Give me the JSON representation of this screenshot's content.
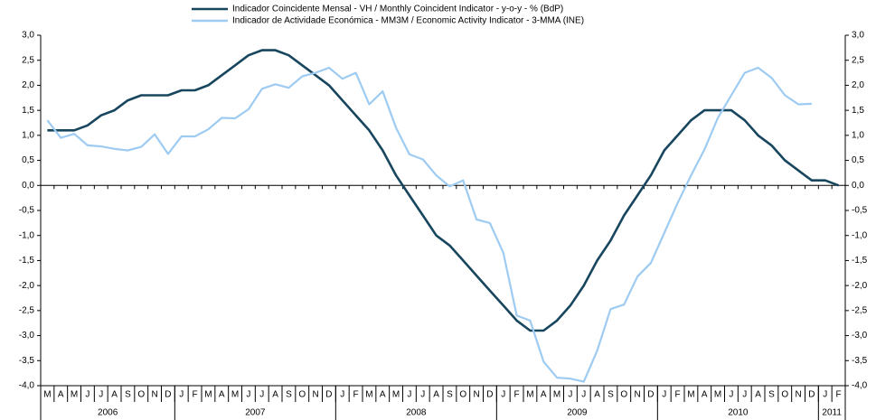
{
  "chart_data": {
    "type": "line",
    "legend": "top",
    "categories": [
      "M",
      "A",
      "M",
      "J",
      "J",
      "A",
      "S",
      "O",
      "N",
      "D",
      "J",
      "F",
      "M",
      "A",
      "M",
      "J",
      "J",
      "A",
      "S",
      "O",
      "N",
      "D",
      "J",
      "F",
      "M",
      "A",
      "M",
      "J",
      "J",
      "A",
      "S",
      "O",
      "N",
      "D",
      "J",
      "F",
      "M",
      "A",
      "M",
      "J",
      "J",
      "A",
      "S",
      "O",
      "N",
      "D",
      "J",
      "F",
      "M",
      "A",
      "M",
      "J",
      "J",
      "A",
      "S",
      "O",
      "N",
      "D",
      "J",
      "F"
    ],
    "year_groups": [
      {
        "label": "2006",
        "count": 10
      },
      {
        "label": "2007",
        "count": 12
      },
      {
        "label": "2008",
        "count": 12
      },
      {
        "label": "2009",
        "count": 12
      },
      {
        "label": "2010",
        "count": 12
      },
      {
        "label": "2011",
        "count": 2
      }
    ],
    "series": [
      {
        "name": "Indicador Coincidente Mensal - VH / Monthly Coincident Indicator - y-o-y - % (BdP)",
        "color": "#17465e",
        "values": [
          1.1,
          1.1,
          1.1,
          1.2,
          1.4,
          1.5,
          1.7,
          1.8,
          1.8,
          1.8,
          1.9,
          1.9,
          2.0,
          2.2,
          2.4,
          2.6,
          2.7,
          2.7,
          2.6,
          2.4,
          2.2,
          2.0,
          1.7,
          1.4,
          1.1,
          0.7,
          0.2,
          -0.2,
          -0.6,
          -1.0,
          -1.2,
          -1.5,
          -1.8,
          -2.1,
          -2.4,
          -2.7,
          -2.9,
          -2.9,
          -2.7,
          -2.4,
          -2.0,
          -1.5,
          -1.1,
          -0.6,
          -0.2,
          0.2,
          0.7,
          1.0,
          1.3,
          1.5,
          1.5,
          1.5,
          1.3,
          1.0,
          0.8,
          0.5,
          0.3,
          0.1,
          0.1,
          0.0
        ]
      },
      {
        "name": "Indicador de Actividade Económica - MM3M / Economic Activity Indicator - 3-MMA (INE)",
        "color": "#9ecbf2",
        "values": [
          1.3,
          0.95,
          1.03,
          0.8,
          0.78,
          0.73,
          0.7,
          0.77,
          1.02,
          0.63,
          0.98,
          0.98,
          1.12,
          1.35,
          1.34,
          1.52,
          1.93,
          2.02,
          1.95,
          2.18,
          2.25,
          2.35,
          2.13,
          2.25,
          1.62,
          1.88,
          1.15,
          0.62,
          0.52,
          0.2,
          -0.02,
          0.1,
          -0.68,
          -0.75,
          -1.35,
          -2.6,
          -2.7,
          -3.52,
          -3.84,
          -3.86,
          -3.92,
          -3.3,
          -2.47,
          -2.38,
          -1.82,
          -1.55,
          -0.95,
          -0.35,
          0.2,
          0.72,
          1.35,
          1.8,
          2.25,
          2.35,
          2.15,
          1.8,
          1.62,
          1.63,
          null,
          null
        ]
      }
    ],
    "ylim": [
      -4,
      3
    ],
    "yticks": [
      {
        "value": 3,
        "label": "3,0"
      },
      {
        "value": 2.5,
        "label": "2,5"
      },
      {
        "value": 2,
        "label": "2,0"
      },
      {
        "value": 1.5,
        "label": "1,5"
      },
      {
        "value": 1,
        "label": "1,0"
      },
      {
        "value": 0.5,
        "label": "0,5"
      },
      {
        "value": 0,
        "label": "0,0"
      },
      {
        "value": -0.5,
        "label": "-0,5"
      },
      {
        "value": -1,
        "label": "-1,0"
      },
      {
        "value": -1.5,
        "label": "-1,5"
      },
      {
        "value": -2,
        "label": "-2,0"
      },
      {
        "value": -2.5,
        "label": "-2,5"
      },
      {
        "value": -3,
        "label": "-3,0"
      },
      {
        "value": -3.5,
        "label": "-3,5"
      },
      {
        "value": -4,
        "label": "-4,0"
      }
    ]
  }
}
